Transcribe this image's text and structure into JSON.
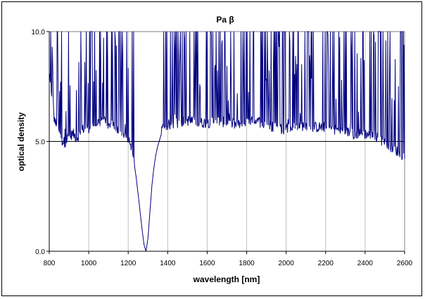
{
  "chart_data": {
    "type": "line",
    "title": "Pa β",
    "xlabel": "wavelength [nm]",
    "ylabel": "optical density",
    "xlim": [
      800,
      2600
    ],
    "ylim": [
      0,
      10
    ],
    "xticks": [
      "800",
      "1000",
      "1200",
      "1400",
      "1600",
      "1800",
      "2000",
      "2200",
      "2400",
      "2600"
    ],
    "yticks": [
      "0.0",
      "5.0",
      "10.0"
    ],
    "grid": {
      "vertical": true,
      "horizontal": [
        5
      ]
    },
    "series": [
      {
        "color": "#000080",
        "note_points_approx": "noisy transmission-limited spectrum; clipped at 10.0",
        "x": [
          800,
          820,
          840,
          860,
          880,
          900,
          920,
          940,
          960,
          980,
          1000,
          1020,
          1040,
          1060,
          1080,
          1100,
          1120,
          1140,
          1160,
          1180,
          1200,
          1210,
          1220,
          1230,
          1240,
          1250,
          1260,
          1270,
          1280,
          1290,
          1300,
          1310,
          1320,
          1330,
          1340,
          1350,
          1360,
          1370,
          1380,
          1400,
          1450,
          1500,
          1550,
          1600,
          1650,
          1700,
          1750,
          1800,
          1850,
          1900,
          1950,
          2000,
          2050,
          2100,
          2150,
          2200,
          2250,
          2300,
          2350,
          2400,
          2450,
          2500,
          2550,
          2600
        ],
        "y": [
          8.0,
          6.2,
          5.5,
          5.0,
          4.9,
          5.2,
          5.3,
          5.1,
          5.4,
          5.6,
          5.5,
          5.7,
          5.8,
          5.9,
          5.9,
          5.6,
          5.8,
          5.5,
          5.4,
          5.3,
          5.0,
          4.8,
          4.5,
          4.0,
          3.4,
          2.6,
          1.8,
          1.0,
          0.3,
          0.0,
          0.6,
          1.8,
          3.0,
          3.8,
          4.4,
          4.8,
          5.1,
          5.4,
          5.6,
          5.7,
          5.8,
          5.9,
          5.8,
          5.8,
          5.9,
          5.8,
          5.7,
          5.8,
          5.9,
          5.7,
          5.6,
          5.5,
          5.6,
          5.7,
          5.6,
          5.6,
          5.5,
          5.4,
          5.3,
          5.3,
          5.2,
          4.9,
          4.6,
          4.2
        ]
      }
    ]
  }
}
